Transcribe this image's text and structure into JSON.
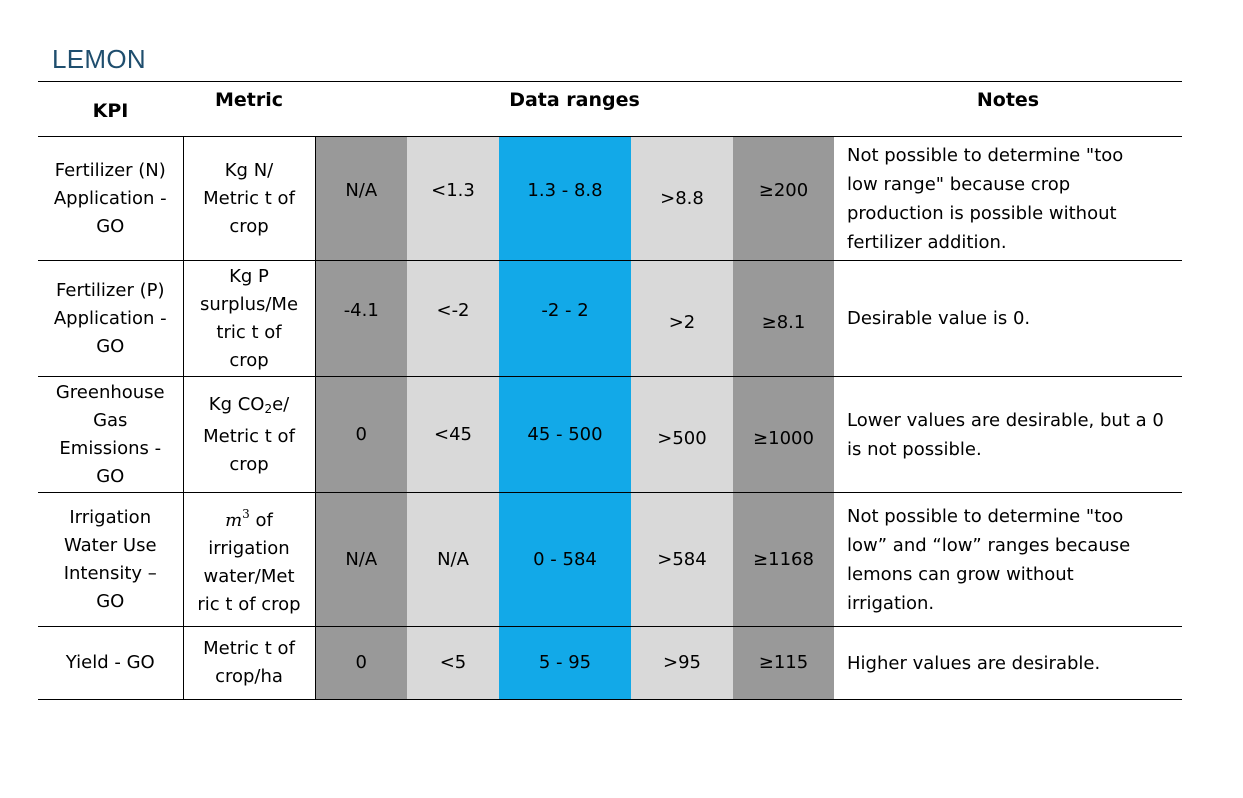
{
  "title": "LEMON",
  "headers": {
    "kpi": "KPI",
    "metric": "Metric",
    "ranges": "Data ranges",
    "notes": "Notes"
  },
  "rows": [
    {
      "kpi": [
        "Fertilizer (N)",
        "Application -",
        "GO"
      ],
      "metric": [
        "Kg N/",
        "Metric t of",
        "crop"
      ],
      "ranges": [
        "N/A",
        "<1.3",
        "1.3 - 8.8",
        ">8.8",
        "≥200"
      ],
      "notes": [
        "Not possible to determine \"too",
        "low range\" because crop",
        "production is possible without",
        "fertilizer addition."
      ]
    },
    {
      "kpi": [
        "Fertilizer (P)",
        "Application -",
        "GO"
      ],
      "metric": [
        "Kg P",
        "surplus/Me",
        "tric t of",
        "crop"
      ],
      "ranges": [
        "-4.1",
        "<-2",
        "-2 - 2",
        ">2",
        "≥8.1"
      ],
      "notes": [
        "Desirable value is 0."
      ]
    },
    {
      "kpi": [
        "Greenhouse",
        "Gas",
        "Emissions -",
        "GO"
      ],
      "metric_prefix": "Kg CO",
      "metric_sub": "2",
      "metric_suffix": "e/",
      "metric": [
        "Metric t of",
        "crop"
      ],
      "ranges": [
        "0",
        "<45",
        "45 - 500",
        ">500",
        "≥1000"
      ],
      "notes": [
        "Lower values are desirable, but a 0",
        "is not possible."
      ]
    },
    {
      "kpi": [
        "Irrigation",
        "Water Use",
        "Intensity –",
        "GO"
      ],
      "metric_var": "m",
      "metric_sup": "3",
      "metric_suffix": " of",
      "metric": [
        "irrigation",
        "water/Met",
        "ric t of crop"
      ],
      "ranges": [
        "N/A",
        "N/A",
        "0 - 584",
        ">584",
        "≥1168"
      ],
      "notes": [
        "Not possible to determine \"too",
        "low” and “low” ranges because",
        "lemons can grow without",
        "irrigation."
      ]
    },
    {
      "kpi": [
        "Yield - GO"
      ],
      "metric": [
        "Metric t of",
        "crop/ha"
      ],
      "ranges": [
        "0",
        "<5",
        "5 - 95",
        ">95",
        "≥115"
      ],
      "notes": [
        "Higher values are desirable."
      ]
    }
  ],
  "colors": {
    "dark_gray": "#999999",
    "light_gray": "#d9d9d9",
    "blue": "#12a9e8",
    "title": "#1f4e6e"
  }
}
